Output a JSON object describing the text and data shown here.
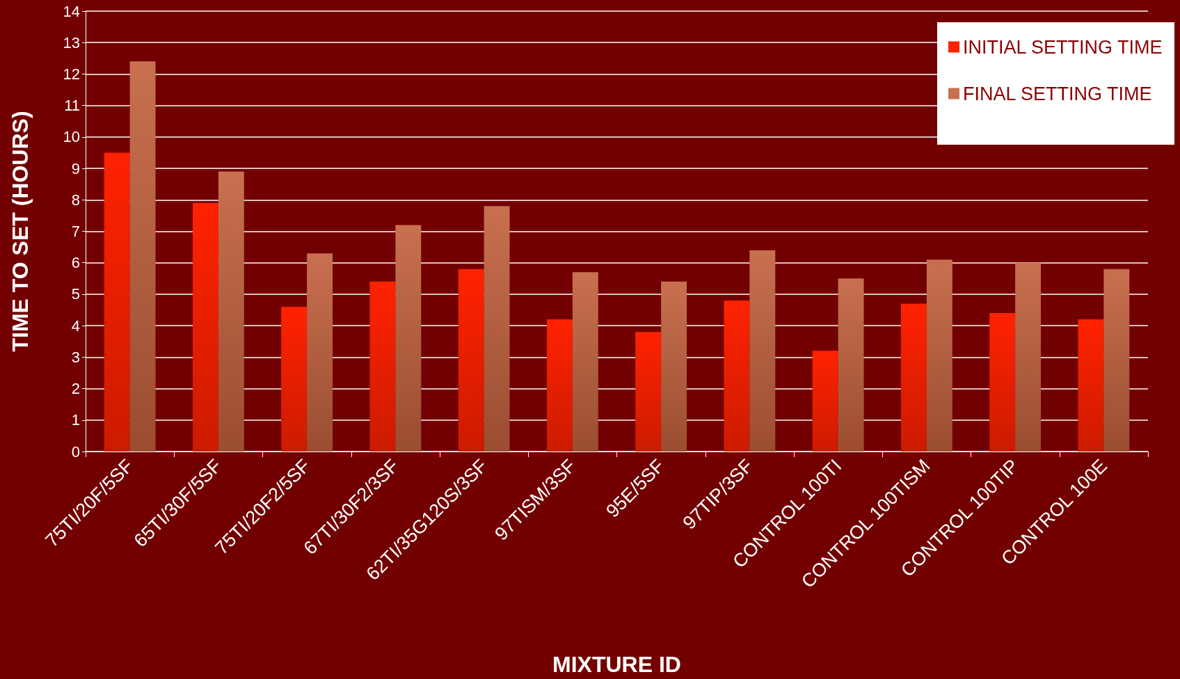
{
  "chart_data": {
    "type": "bar",
    "xlabel": "MIXTURE ID",
    "ylabel": "TIME TO SET (HOURS)",
    "categories": [
      "75TI/20F/5SF",
      "65TI/30F/5SF",
      "75TI/20F2/5SF",
      "67TI/30F2/3SF",
      "62TI/35G120S/3SF",
      "97TISM/3SF",
      "95E/5SF",
      "97TIP/3SF",
      "CONTROL 100TI",
      "CONTROL 100TISM",
      "CONTROL 100TIP",
      "CONTROL 100E"
    ],
    "series": [
      {
        "name": "INITIAL SETTING TIME",
        "color": "#ff2200",
        "values": [
          9.5,
          7.9,
          4.6,
          5.4,
          5.8,
          4.2,
          3.8,
          4.8,
          3.2,
          4.7,
          4.4,
          4.2
        ]
      },
      {
        "name": "FINAL SETTING TIME",
        "color": "#c87050",
        "values": [
          12.4,
          8.9,
          6.3,
          7.2,
          7.8,
          5.7,
          5.4,
          6.4,
          5.5,
          6.1,
          6.0,
          5.8
        ]
      }
    ],
    "ylim": [
      0,
      14
    ],
    "yticks": [
      0,
      1,
      2,
      3,
      4,
      5,
      6,
      7,
      8,
      9,
      10,
      11,
      12,
      13,
      14
    ],
    "grid": "y",
    "legend": "top right"
  }
}
